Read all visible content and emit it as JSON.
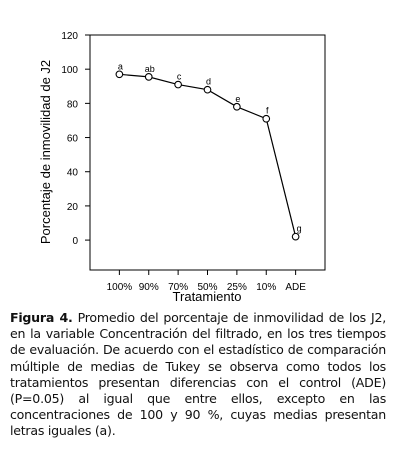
{
  "chart_data": {
    "type": "line",
    "y_label": "Porcentaje de inmovilidad de J2",
    "x_label": "Tratamiento",
    "categories": [
      "100%",
      "90%",
      "70%",
      "50%",
      "25%",
      "10%",
      "ADE"
    ],
    "series": [
      {
        "color": "#000000",
        "values": [
          97,
          95.5,
          91,
          88,
          78,
          71,
          2
        ]
      }
    ],
    "annotations": [
      "a",
      "ab",
      "c",
      "d",
      "e",
      "f",
      "g"
    ],
    "ylim": [
      -17.5,
      120
    ],
    "yticks": [
      0,
      20,
      40,
      60,
      80,
      100,
      120
    ]
  },
  "caption": {
    "label": "Figura 4.",
    "text": "Promedio del porcentaje de inmovilidad de los J2, en la variable Concentración del filtrado, en los tres tiempos de evaluación. De acuerdo con el estadístico de comparación múltiple de medias de Tukey se observa como todos los tratamientos presentan diferencias con el control (ADE) (P=0.05) al igual que entre ellos, excepto en las concentraciones de 100 y 90 %, cuyas medias presentan letras iguales (a)."
  }
}
